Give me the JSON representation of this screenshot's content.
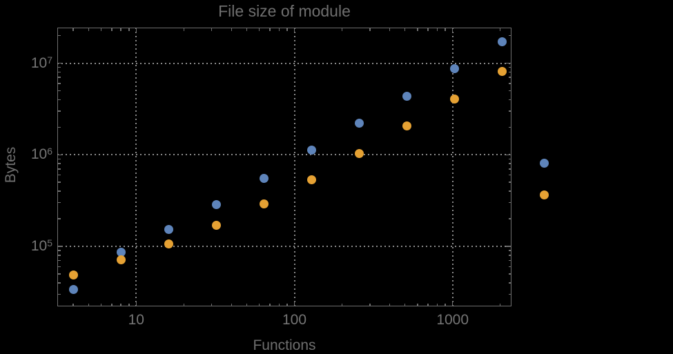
{
  "colors": {
    "background": "#000000",
    "frame": "#6f6f6f",
    "grid": "#8a8a8a",
    "text": "#6f6f6f",
    "series1": "#5e84ba",
    "series2": "#e5a133"
  },
  "chart_data": {
    "type": "scatter",
    "title": "File size of module",
    "xlabel": "Functions",
    "ylabel": "Bytes",
    "x_scale": "log",
    "y_scale": "log",
    "grid": "dotted at decades",
    "legend": "none",
    "xlim": [
      3.2,
      2330
    ],
    "ylim": [
      22000,
      24000000
    ],
    "x_ticks": [
      10,
      100,
      1000
    ],
    "x_tick_labels": [
      "10",
      "100",
      "1000"
    ],
    "y_ticks": [
      100000,
      1000000,
      10000000
    ],
    "y_tick_labels": [
      {
        "base": "10",
        "exp": "5"
      },
      {
        "base": "10",
        "exp": "6"
      },
      {
        "base": "10",
        "exp": "7"
      }
    ],
    "x": [
      4,
      8,
      16,
      32,
      64,
      128,
      256,
      512,
      1024,
      2048,
      3800
    ],
    "series": [
      {
        "name": "blue",
        "color": "#5e84ba",
        "values": [
          34000,
          86000,
          152000,
          288000,
          548000,
          1120000,
          2210000,
          4370000,
          8630000,
          17000000,
          815000
        ]
      },
      {
        "name": "orange",
        "color": "#e5a133",
        "values": [
          48700,
          71300,
          106000,
          171000,
          290000,
          529000,
          1030000,
          2050000,
          4060000,
          8120000,
          367000
        ]
      }
    ],
    "note": "last data pair of each series is drawn outside the plot frame (plot range clipping off)"
  }
}
